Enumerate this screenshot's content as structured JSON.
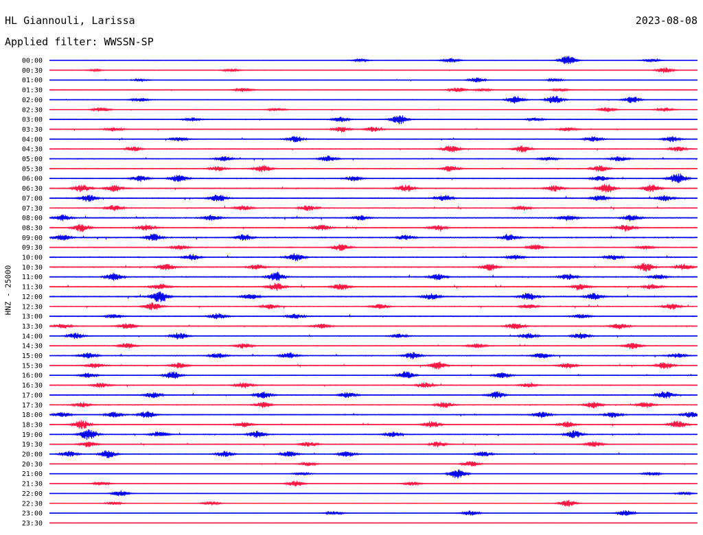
{
  "header": {
    "station": "HL Giannouli, Larissa",
    "date": "2023-08-08",
    "filter": "Applied filter: WWSSN-SP",
    "channel": "HNZ - 25000"
  },
  "colors": {
    "blue": "#0000ee",
    "red": "#ff1744"
  },
  "chart_data": {
    "type": "line",
    "title": "HL Giannouli, Larissa",
    "ylabel": "HNZ - 25000",
    "trace_interval_minutes": 30,
    "trace_colors": [
      "#0000ee",
      "#ff1744"
    ],
    "traces": [
      {
        "label": "00:00",
        "activity": 0.35,
        "events": [
          [
            0.48,
            0.3
          ],
          [
            0.62,
            0.5
          ],
          [
            0.8,
            1.0
          ],
          [
            0.93,
            0.35
          ]
        ]
      },
      {
        "label": "00:30",
        "activity": 0.4,
        "events": [
          [
            0.07,
            0.2
          ],
          [
            0.28,
            0.3
          ],
          [
            0.95,
            0.6
          ]
        ]
      },
      {
        "label": "01:00",
        "activity": 0.45,
        "events": [
          [
            0.14,
            0.2
          ],
          [
            0.66,
            0.5
          ],
          [
            0.78,
            0.3
          ]
        ]
      },
      {
        "label": "01:30",
        "activity": 0.55,
        "events": [
          [
            0.3,
            0.4
          ],
          [
            0.63,
            0.5
          ],
          [
            0.67,
            0.3
          ],
          [
            0.79,
            0.3
          ]
        ]
      },
      {
        "label": "02:00",
        "activity": 0.6,
        "events": [
          [
            0.14,
            0.4
          ],
          [
            0.72,
            0.8
          ],
          [
            0.78,
            0.9
          ],
          [
            0.9,
            0.7
          ]
        ]
      },
      {
        "label": "02:30",
        "activity": 0.6,
        "events": [
          [
            0.08,
            0.5
          ],
          [
            0.35,
            0.3
          ],
          [
            0.86,
            0.5
          ],
          [
            0.95,
            0.4
          ]
        ]
      },
      {
        "label": "03:00",
        "activity": 0.7,
        "events": [
          [
            0.22,
            0.4
          ],
          [
            0.45,
            0.5
          ],
          [
            0.54,
            1.0
          ],
          [
            0.75,
            0.3
          ]
        ]
      },
      {
        "label": "03:30",
        "activity": 0.8,
        "events": [
          [
            0.1,
            0.4
          ],
          [
            0.45,
            0.6
          ],
          [
            0.5,
            0.5
          ],
          [
            0.8,
            0.4
          ]
        ]
      },
      {
        "label": "04:00",
        "activity": 0.85,
        "events": [
          [
            0.2,
            0.4
          ],
          [
            0.38,
            0.6
          ],
          [
            0.84,
            0.5
          ],
          [
            0.96,
            0.6
          ]
        ]
      },
      {
        "label": "04:30",
        "activity": 0.9,
        "events": [
          [
            0.13,
            0.5
          ],
          [
            0.62,
            0.7
          ],
          [
            0.73,
            0.7
          ],
          [
            0.97,
            0.5
          ]
        ]
      },
      {
        "label": "05:00",
        "activity": 0.9,
        "events": [
          [
            0.27,
            0.5
          ],
          [
            0.43,
            0.6
          ],
          [
            0.77,
            0.4
          ],
          [
            0.88,
            0.5
          ]
        ]
      },
      {
        "label": "05:30",
        "activity": 1.0,
        "events": [
          [
            0.26,
            0.5
          ],
          [
            0.33,
            0.7
          ],
          [
            0.62,
            0.6
          ],
          [
            0.85,
            0.6
          ]
        ]
      },
      {
        "label": "06:00",
        "activity": 1.0,
        "events": [
          [
            0.14,
            0.6
          ],
          [
            0.2,
            0.8
          ],
          [
            0.47,
            0.5
          ],
          [
            0.85,
            0.6
          ],
          [
            0.97,
            1.2
          ]
        ]
      },
      {
        "label": "06:30",
        "activity": 1.1,
        "events": [
          [
            0.05,
            0.8
          ],
          [
            0.1,
            0.7
          ],
          [
            0.55,
            0.7
          ],
          [
            0.78,
            0.6
          ],
          [
            0.86,
            1.0
          ],
          [
            0.93,
            0.8
          ]
        ]
      },
      {
        "label": "07:00",
        "activity": 1.1,
        "events": [
          [
            0.06,
            0.7
          ],
          [
            0.26,
            0.8
          ],
          [
            0.61,
            0.6
          ],
          [
            0.85,
            0.6
          ],
          [
            0.95,
            0.6
          ]
        ]
      },
      {
        "label": "07:30",
        "activity": 1.1,
        "events": [
          [
            0.1,
            0.6
          ],
          [
            0.3,
            0.5
          ],
          [
            0.4,
            0.6
          ],
          [
            0.73,
            0.5
          ]
        ]
      },
      {
        "label": "08:00",
        "activity": 1.2,
        "events": [
          [
            0.02,
            0.6
          ],
          [
            0.25,
            0.6
          ],
          [
            0.48,
            0.5
          ],
          [
            0.8,
            0.6
          ],
          [
            0.9,
            0.7
          ]
        ]
      },
      {
        "label": "08:30",
        "activity": 1.2,
        "events": [
          [
            0.05,
            0.8
          ],
          [
            0.15,
            0.6
          ],
          [
            0.42,
            0.6
          ],
          [
            0.6,
            0.5
          ],
          [
            0.89,
            0.7
          ]
        ]
      },
      {
        "label": "09:00",
        "activity": 1.2,
        "events": [
          [
            0.02,
            0.6
          ],
          [
            0.16,
            0.8
          ],
          [
            0.3,
            0.7
          ],
          [
            0.55,
            0.5
          ],
          [
            0.71,
            0.6
          ]
        ]
      },
      {
        "label": "09:30",
        "activity": 1.1,
        "events": [
          [
            0.2,
            0.5
          ],
          [
            0.45,
            0.7
          ],
          [
            0.75,
            0.6
          ],
          [
            0.92,
            0.4
          ]
        ]
      },
      {
        "label": "10:00",
        "activity": 1.1,
        "events": [
          [
            0.22,
            0.6
          ],
          [
            0.38,
            0.8
          ],
          [
            0.72,
            0.5
          ],
          [
            0.87,
            0.5
          ]
        ]
      },
      {
        "label": "10:30",
        "activity": 1.2,
        "events": [
          [
            0.18,
            0.7
          ],
          [
            0.32,
            0.5
          ],
          [
            0.68,
            0.7
          ],
          [
            0.92,
            0.9
          ],
          [
            0.98,
            0.6
          ]
        ]
      },
      {
        "label": "11:00",
        "activity": 1.2,
        "events": [
          [
            0.1,
            0.8
          ],
          [
            0.35,
            0.9
          ],
          [
            0.6,
            0.6
          ],
          [
            0.8,
            0.6
          ],
          [
            0.94,
            0.5
          ]
        ]
      },
      {
        "label": "11:30",
        "activity": 1.2,
        "events": [
          [
            0.17,
            0.6
          ],
          [
            0.35,
            0.8
          ],
          [
            0.45,
            0.7
          ],
          [
            0.82,
            0.6
          ],
          [
            0.93,
            0.5
          ]
        ]
      },
      {
        "label": "12:00",
        "activity": 1.3,
        "events": [
          [
            0.17,
            1.2
          ],
          [
            0.31,
            0.6
          ],
          [
            0.59,
            0.6
          ],
          [
            0.74,
            0.8
          ],
          [
            0.84,
            0.7
          ]
        ]
      },
      {
        "label": "12:30",
        "activity": 1.0,
        "events": [
          [
            0.16,
            0.8
          ],
          [
            0.34,
            0.5
          ],
          [
            0.51,
            0.5
          ],
          [
            0.74,
            0.5
          ],
          [
            0.96,
            0.6
          ]
        ]
      },
      {
        "label": "13:00",
        "activity": 1.0,
        "events": [
          [
            0.1,
            0.4
          ],
          [
            0.26,
            0.6
          ],
          [
            0.38,
            0.5
          ],
          [
            0.82,
            0.4
          ]
        ]
      },
      {
        "label": "13:30",
        "activity": 1.0,
        "events": [
          [
            0.02,
            0.5
          ],
          [
            0.12,
            0.6
          ],
          [
            0.42,
            0.5
          ],
          [
            0.72,
            0.7
          ],
          [
            0.88,
            0.6
          ]
        ]
      },
      {
        "label": "14:00",
        "activity": 0.9,
        "events": [
          [
            0.04,
            0.6
          ],
          [
            0.2,
            0.7
          ],
          [
            0.54,
            0.4
          ],
          [
            0.74,
            0.6
          ],
          [
            0.82,
            0.6
          ]
        ]
      },
      {
        "label": "14:30",
        "activity": 1.0,
        "events": [
          [
            0.12,
            0.6
          ],
          [
            0.3,
            0.5
          ],
          [
            0.66,
            0.5
          ],
          [
            0.9,
            0.7
          ]
        ]
      },
      {
        "label": "15:00",
        "activity": 1.0,
        "events": [
          [
            0.06,
            0.7
          ],
          [
            0.26,
            0.5
          ],
          [
            0.37,
            0.6
          ],
          [
            0.56,
            0.7
          ],
          [
            0.76,
            0.6
          ],
          [
            0.97,
            0.5
          ]
        ]
      },
      {
        "label": "15:30",
        "activity": 1.0,
        "events": [
          [
            0.07,
            0.5
          ],
          [
            0.2,
            0.6
          ],
          [
            0.6,
            0.8
          ],
          [
            0.8,
            0.6
          ],
          [
            0.95,
            0.7
          ]
        ]
      },
      {
        "label": "16:00",
        "activity": 0.9,
        "events": [
          [
            0.06,
            0.5
          ],
          [
            0.19,
            0.8
          ],
          [
            0.55,
            0.8
          ],
          [
            0.7,
            0.6
          ]
        ]
      },
      {
        "label": "16:30",
        "activity": 0.9,
        "events": [
          [
            0.08,
            0.5
          ],
          [
            0.3,
            0.6
          ],
          [
            0.58,
            0.5
          ],
          [
            0.74,
            0.4
          ]
        ]
      },
      {
        "label": "17:00",
        "activity": 1.0,
        "events": [
          [
            0.16,
            0.6
          ],
          [
            0.33,
            0.7
          ],
          [
            0.46,
            0.6
          ],
          [
            0.69,
            0.7
          ],
          [
            0.95,
            0.8
          ]
        ]
      },
      {
        "label": "17:30",
        "activity": 1.0,
        "events": [
          [
            0.05,
            0.5
          ],
          [
            0.33,
            0.6
          ],
          [
            0.61,
            0.6
          ],
          [
            0.84,
            0.7
          ],
          [
            0.92,
            0.6
          ]
        ]
      },
      {
        "label": "18:00",
        "activity": 1.0,
        "events": [
          [
            0.02,
            0.5
          ],
          [
            0.1,
            0.6
          ],
          [
            0.15,
            0.7
          ],
          [
            0.76,
            0.6
          ],
          [
            0.87,
            0.6
          ],
          [
            0.99,
            0.6
          ]
        ]
      },
      {
        "label": "18:30",
        "activity": 1.0,
        "events": [
          [
            0.05,
            0.9
          ],
          [
            0.3,
            0.5
          ],
          [
            0.59,
            0.7
          ],
          [
            0.8,
            0.6
          ],
          [
            0.97,
            0.8
          ]
        ]
      },
      {
        "label": "19:00",
        "activity": 1.0,
        "events": [
          [
            0.06,
            1.1
          ],
          [
            0.17,
            0.6
          ],
          [
            0.32,
            0.7
          ],
          [
            0.53,
            0.5
          ],
          [
            0.81,
            0.8
          ]
        ]
      },
      {
        "label": "19:30",
        "activity": 0.9,
        "events": [
          [
            0.06,
            0.6
          ],
          [
            0.4,
            0.5
          ],
          [
            0.6,
            0.6
          ],
          [
            0.84,
            0.6
          ]
        ]
      },
      {
        "label": "20:00",
        "activity": 0.8,
        "events": [
          [
            0.03,
            0.6
          ],
          [
            0.09,
            0.8
          ],
          [
            0.27,
            0.6
          ],
          [
            0.37,
            0.6
          ],
          [
            0.46,
            0.6
          ],
          [
            0.67,
            0.5
          ]
        ]
      },
      {
        "label": "20:30",
        "activity": 0.5,
        "events": [
          [
            0.4,
            0.4
          ],
          [
            0.65,
            0.6
          ]
        ]
      },
      {
        "label": "21:00",
        "activity": 0.45,
        "events": [
          [
            0.39,
            0.3
          ],
          [
            0.63,
            1.0
          ],
          [
            0.93,
            0.4
          ]
        ]
      },
      {
        "label": "21:30",
        "activity": 0.45,
        "events": [
          [
            0.08,
            0.4
          ],
          [
            0.38,
            0.6
          ],
          [
            0.56,
            0.4
          ]
        ]
      },
      {
        "label": "22:00",
        "activity": 0.35,
        "events": [
          [
            0.11,
            0.6
          ],
          [
            0.98,
            0.3
          ]
        ]
      },
      {
        "label": "22:30",
        "activity": 0.4,
        "events": [
          [
            0.1,
            0.3
          ],
          [
            0.25,
            0.4
          ],
          [
            0.8,
            0.7
          ]
        ]
      },
      {
        "label": "23:00",
        "activity": 0.4,
        "events": [
          [
            0.44,
            0.4
          ],
          [
            0.65,
            0.5
          ],
          [
            0.89,
            0.6
          ]
        ]
      },
      {
        "label": "23:30",
        "activity": 0.05,
        "events": []
      }
    ]
  }
}
